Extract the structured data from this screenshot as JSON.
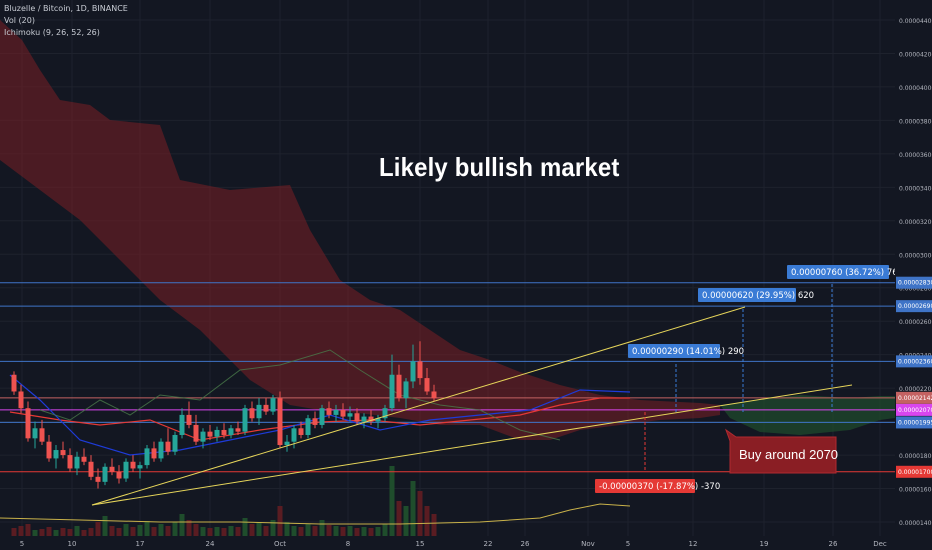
{
  "header": {
    "symbol": "Bluzelle / Bitcoin, 1D, BINANCE",
    "volume": "Vol (20)",
    "ichimoku": "Ichimoku (9, 26, 52, 26)"
  },
  "headline": "Likely bullish market",
  "annotation_note": "Buy around 2070",
  "colors": {
    "background": "#131722",
    "cloud_red": "#7a1f24",
    "cloud_green": "#1f4d2c",
    "candle_up": "#26a69a",
    "candle_down": "#ef5350",
    "trendline": "#e6d55a",
    "resistance": "#3f74c7",
    "support_red": "#e53935",
    "magenta": "#d946ef",
    "label_blue": "#3a7bd5",
    "label_red": "#e53935"
  },
  "chart_data": {
    "type": "candlestick",
    "y_scale": "price (BTC)",
    "ylim": [
      1.4e-05,
      4.5e-05
    ],
    "y_ticks": [
      "0.00004400",
      "0.00004200",
      "0.00004000",
      "0.00003800",
      "0.00003600",
      "0.00003400",
      "0.00003200",
      "0.00003000",
      "0.00002800",
      "0.00002600",
      "0.00002400",
      "0.00002200",
      "0.00002000",
      "0.00001800",
      "0.00001600",
      "0.00001400"
    ],
    "x_ticks": [
      "5",
      "10",
      "17",
      "24",
      "Oct",
      "8",
      "15",
      "22",
      "26",
      "Nov",
      "5",
      "12",
      "19",
      "26",
      "Dec"
    ],
    "horizontal_levels": [
      {
        "value": 2.83e-05,
        "label": "0.00002830",
        "style": "resistance"
      },
      {
        "value": 2.69e-05,
        "label": "0.00002690",
        "style": "resistance"
      },
      {
        "value": 2.36e-05,
        "label": "0.00002360",
        "style": "resistance"
      },
      {
        "value": 2.142e-05,
        "label": "0.00002142",
        "style": "price"
      },
      {
        "value": 2.07e-05,
        "label": "0.00002070",
        "style": "magenta"
      },
      {
        "value": 1.995e-05,
        "label": "0.00001995",
        "style": "resistance"
      },
      {
        "value": 1.7e-05,
        "label": "0.00001700",
        "style": "support"
      }
    ],
    "targets": [
      {
        "label": "0.00000290 (14.01%) 290",
        "kind": "up"
      },
      {
        "label": "0.00000620 (29.95%) 620",
        "kind": "up"
      },
      {
        "label": "0.00000760 (36.72%) 760",
        "kind": "up"
      },
      {
        "label": "-0.00000370 (-17.87%) -370",
        "kind": "down"
      }
    ],
    "candles": [
      [
        2.28e-05,
        2.3e-05,
        2.16e-05,
        2.18e-05
      ],
      [
        2.18e-05,
        2.22e-05,
        2.05e-05,
        2.08e-05
      ],
      [
        2.08e-05,
        2.12e-05,
        1.88e-05,
        1.9e-05
      ],
      [
        1.9e-05,
        2e-05,
        1.84e-05,
        1.96e-05
      ],
      [
        1.96e-05,
        2.01e-05,
        1.86e-05,
        1.88e-05
      ],
      [
        1.88e-05,
        1.92e-05,
        1.76e-05,
        1.78e-05
      ],
      [
        1.78e-05,
        1.86e-05,
        1.72e-05,
        1.83e-05
      ],
      [
        1.83e-05,
        1.88e-05,
        1.78e-05,
        1.8e-05
      ],
      [
        1.8e-05,
        1.84e-05,
        1.7e-05,
        1.72e-05
      ],
      [
        1.72e-05,
        1.82e-05,
        1.68e-05,
        1.79e-05
      ],
      [
        1.79e-05,
        1.84e-05,
        1.74e-05,
        1.76e-05
      ],
      [
        1.76e-05,
        1.8e-05,
        1.65e-05,
        1.67e-05
      ],
      [
        1.67e-05,
        1.72e-05,
        1.6e-05,
        1.64e-05
      ],
      [
        1.64e-05,
        1.75e-05,
        1.62e-05,
        1.73e-05
      ],
      [
        1.73e-05,
        1.78e-05,
        1.68e-05,
        1.7e-05
      ],
      [
        1.7e-05,
        1.74e-05,
        1.63e-05,
        1.66e-05
      ],
      [
        1.66e-05,
        1.78e-05,
        1.64e-05,
        1.76e-05
      ],
      [
        1.76e-05,
        1.8e-05,
        1.7e-05,
        1.72e-05
      ],
      [
        1.72e-05,
        1.76e-05,
        1.66e-05,
        1.74e-05
      ],
      [
        1.74e-05,
        1.86e-05,
        1.72e-05,
        1.84e-05
      ],
      [
        1.84e-05,
        1.88e-05,
        1.76e-05,
        1.78e-05
      ],
      [
        1.78e-05,
        1.9e-05,
        1.76e-05,
        1.88e-05
      ],
      [
        1.88e-05,
        1.96e-05,
        1.8e-05,
        1.82e-05
      ],
      [
        1.82e-05,
        1.94e-05,
        1.8e-05,
        1.92e-05
      ],
      [
        1.92e-05,
        2.08e-05,
        1.9e-05,
        2.04e-05
      ],
      [
        2.04e-05,
        2.12e-05,
        1.96e-05,
        1.98e-05
      ],
      [
        1.98e-05,
        2.04e-05,
        1.86e-05,
        1.88e-05
      ],
      [
        1.88e-05,
        1.96e-05,
        1.84e-05,
        1.94e-05
      ],
      [
        1.94e-05,
        1.98e-05,
        1.89e-05,
        1.91e-05
      ],
      [
        1.91e-05,
        1.97e-05,
        1.88e-05,
        1.95e-05
      ],
      [
        1.95e-05,
        1.99e-05,
        1.9e-05,
        1.92e-05
      ],
      [
        1.92e-05,
        1.98e-05,
        1.9e-05,
        1.96e-05
      ],
      [
        1.96e-05,
        2e-05,
        1.92e-05,
        1.94e-05
      ],
      [
        1.94e-05,
        2.1e-05,
        1.92e-05,
        2.08e-05
      ],
      [
        2.08e-05,
        2.12e-05,
        2e-05,
        2.02e-05
      ],
      [
        2.02e-05,
        2.14e-05,
        1.98e-05,
        2.1e-05
      ],
      [
        2.1e-05,
        2.14e-05,
        2.04e-05,
        2.06e-05
      ],
      [
        2.06e-05,
        2.16e-05,
        2.04e-05,
        2.14e-05
      ],
      [
        2.14e-05,
        2.18e-05,
        1.84e-05,
        1.86e-05
      ],
      [
        1.86e-05,
        1.92e-05,
        1.82e-05,
        1.88e-05
      ],
      [
        1.88e-05,
        1.98e-05,
        1.84e-05,
        1.96e-05
      ],
      [
        1.96e-05,
        2e-05,
        1.9e-05,
        1.92e-05
      ],
      [
        1.92e-05,
        2.04e-05,
        1.9e-05,
        2.02e-05
      ],
      [
        2.02e-05,
        2.06e-05,
        1.96e-05,
        1.98e-05
      ],
      [
        1.98e-05,
        2.1e-05,
        1.96e-05,
        2.08e-05
      ],
      [
        2.08e-05,
        2.12e-05,
        2.02e-05,
        2.04e-05
      ],
      [
        2.04e-05,
        2.1e-05,
        2e-05,
        2.07e-05
      ],
      [
        2.07e-05,
        2.11e-05,
        2.01e-05,
        2.03e-05
      ],
      [
        2.03e-05,
        2.09e-05,
        2e-05,
        2.05e-05
      ],
      [
        2.05e-05,
        2.08e-05,
        1.98e-05,
        2e-05
      ],
      [
        2e-05,
        2.05e-05,
        1.96e-05,
        2.03e-05
      ],
      [
        2.03e-05,
        2.07e-05,
        1.98e-05,
        2e-05
      ],
      [
        2e-05,
        2.04e-05,
        1.96e-05,
        2.02e-05
      ],
      [
        2.02e-05,
        2.1e-05,
        2e-05,
        2.08e-05
      ],
      [
        2.08e-05,
        2.4e-05,
        2.06e-05,
        2.28e-05
      ],
      [
        2.28e-05,
        2.34e-05,
        2.12e-05,
        2.14e-05
      ],
      [
        2.14e-05,
        2.26e-05,
        2.08e-05,
        2.24e-05
      ],
      [
        2.24e-05,
        2.46e-05,
        2.2e-05,
        2.36e-05
      ],
      [
        2.36e-05,
        2.48e-05,
        2.22e-05,
        2.26e-05
      ],
      [
        2.26e-05,
        2.32e-05,
        2.16e-05,
        2.18e-05
      ],
      [
        2.18e-05,
        2.22e-05,
        2.12e-05,
        2.14e-05
      ]
    ]
  }
}
